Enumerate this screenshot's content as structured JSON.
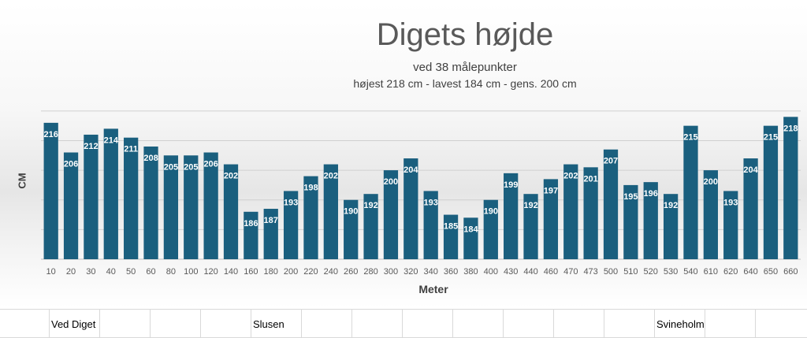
{
  "chart_data": {
    "type": "bar",
    "title": "Digets højde",
    "subtitle": "ved 38 målepunkter",
    "subtitle2": "højest 218 cm - lavest 184 cm -  gens. 200 cm",
    "xlabel": "Meter",
    "ylabel": "CM",
    "ylim": [
      170,
      225
    ],
    "grid": true,
    "categories": [
      "10",
      "20",
      "30",
      "40",
      "50",
      "60",
      "80",
      "100",
      "120",
      "140",
      "160",
      "180",
      "200",
      "220",
      "240",
      "260",
      "280",
      "300",
      "320",
      "340",
      "360",
      "380",
      "400",
      "430",
      "440",
      "460",
      "470",
      "473",
      "500",
      "510",
      "520",
      "530",
      "540",
      "610",
      "620",
      "640",
      "650",
      "660"
    ],
    "values": [
      216,
      206,
      212,
      214,
      211,
      208,
      205,
      205,
      206,
      202,
      186,
      187,
      193,
      198,
      202,
      190,
      192,
      200,
      204,
      193,
      185,
      184,
      190,
      199,
      192,
      197,
      202,
      201,
      207,
      195,
      196,
      192,
      215,
      200,
      193,
      204,
      215,
      218
    ],
    "bar_color": "#1a5f7e",
    "label_color": "#ffffff"
  },
  "sheet_cells": {
    "ved_diget": "Ved Diget",
    "slusen": "Slusen",
    "svineholm": "Svineholm"
  }
}
